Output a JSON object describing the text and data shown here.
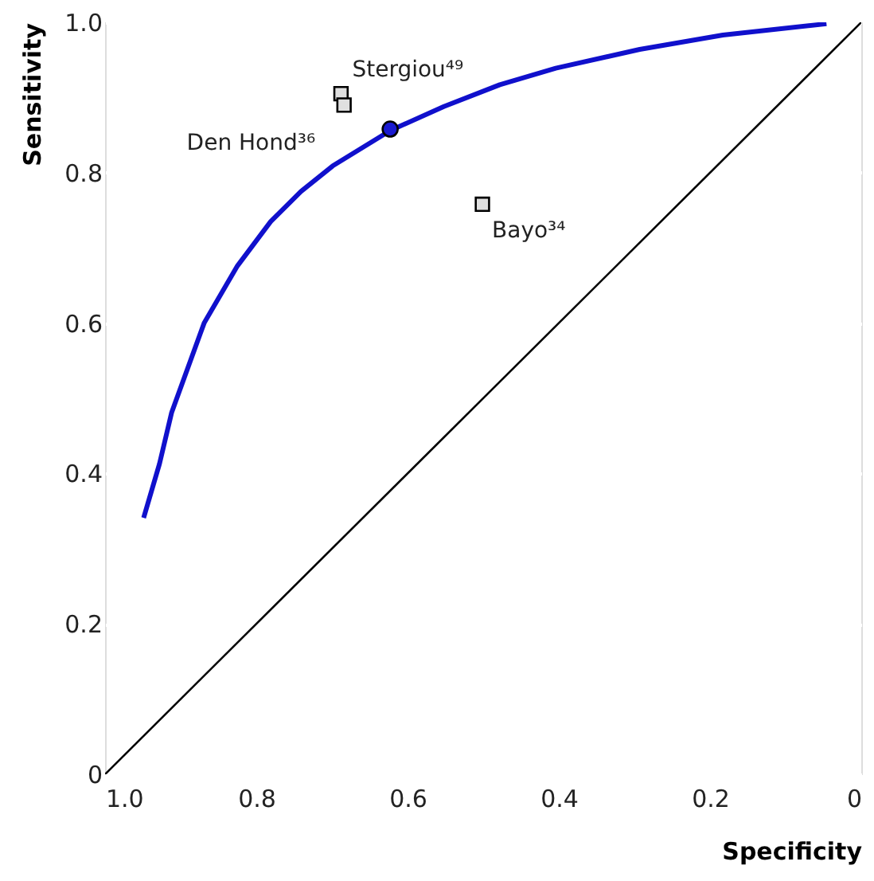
{
  "chart_data": {
    "type": "line",
    "xlabel": "Specificity",
    "ylabel": "Sensitivity",
    "xlim": [
      1.0,
      0
    ],
    "ylim": [
      0,
      1.0
    ],
    "xticks": [
      {
        "value": 1.0,
        "label": "1.0"
      },
      0.8,
      0.6,
      0.4,
      0.2,
      {
        "value": 0,
        "label": "0"
      }
    ],
    "yticks": [
      {
        "value": 0,
        "label": "0"
      },
      0.2,
      0.4,
      0.6,
      0.8,
      {
        "value": 1.0,
        "label": "1.0"
      }
    ],
    "grid": "y",
    "series": [
      {
        "color": "#1010cc",
        "marker": "none",
        "x": [
          0.949,
          0.928,
          0.912,
          0.869,
          0.825,
          0.781,
          0.741,
          0.699,
          0.623,
          0.552,
          0.478,
          0.404,
          0.293,
          0.183,
          0.046
        ],
        "values": [
          0.341,
          0.413,
          0.481,
          0.6,
          0.676,
          0.735,
          0.775,
          0.809,
          0.856,
          0.888,
          0.917,
          0.939,
          0.964,
          0.983,
          0.998
        ]
      },
      {
        "color": "#000000",
        "marker": "none",
        "x": [
          1.0,
          0
        ],
        "values": [
          0,
          1.0
        ]
      },
      {
        "type": "scatter",
        "color": "#e0e0e0",
        "marker": "square",
        "x": [
          0.688,
          0.684,
          0.501
        ],
        "values": [
          0.905,
          0.89,
          0.758
        ]
      },
      {
        "type": "scatter",
        "color": "#1a1ad0",
        "marker": "circle",
        "x": [
          0.623
        ],
        "values": [
          0.858
        ]
      }
    ],
    "annotations": [
      {
        "text": "Stergiou⁴⁹",
        "x": 0.688,
        "y": 0.905
      },
      {
        "text": "Den Hond³⁶",
        "x": 0.684,
        "y": 0.89
      },
      {
        "text": "Bayo³⁴",
        "x": 0.501,
        "y": 0.758
      }
    ]
  }
}
